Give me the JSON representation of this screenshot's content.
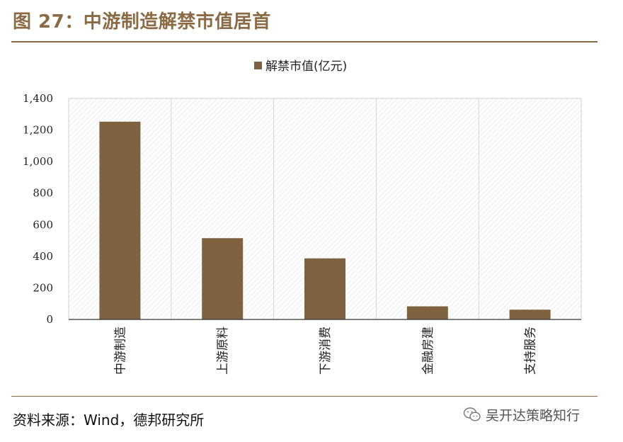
{
  "header": {
    "title": "图 27：中游制造解禁市值居首"
  },
  "footer": {
    "source": "资料来源：Wind，德邦研究所",
    "watermark": "吴开达策略知行"
  },
  "colors": {
    "bar": "#7f6240",
    "accent": "#8a6b45"
  },
  "chart_data": {
    "type": "bar",
    "categories": [
      "中游制造",
      "上游原料",
      "下游消费",
      "金融房建",
      "支持服务"
    ],
    "series": [
      {
        "name": "解禁市值(亿元)",
        "values": [
          1253,
          515,
          387,
          83,
          62
        ]
      }
    ],
    "ylim": [
      0,
      1400
    ],
    "yticks": [
      0,
      200,
      400,
      600,
      800,
      1000,
      1200,
      1400
    ],
    "ytick_labels": [
      "0",
      "200",
      "400",
      "600",
      "800",
      "1,000",
      "1,200",
      "1,400"
    ],
    "legend_position": "top-center",
    "grid": true
  }
}
